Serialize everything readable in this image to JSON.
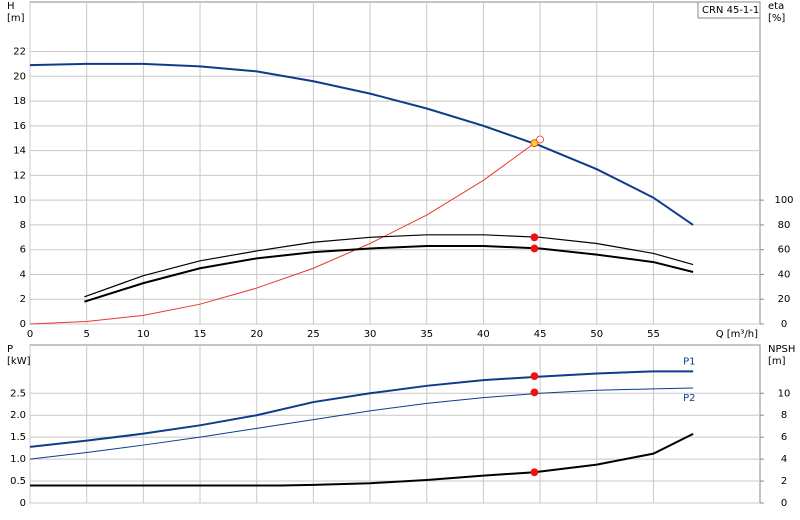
{
  "chart_data": [
    {
      "type": "line",
      "title": "CRN 45-1-1",
      "ylabel": [
        "H",
        "[m]"
      ],
      "y2label": [
        "eta",
        "[%]"
      ],
      "xlabel": "Q [m³/h]",
      "xlim": [
        0,
        64.4
      ],
      "xticks": [
        0,
        5,
        10,
        15,
        20,
        25,
        30,
        35,
        40,
        45,
        50,
        55
      ],
      "xtick_labels": true,
      "ylim": [
        0,
        26
      ],
      "yticks": [
        0,
        2,
        4,
        6,
        8,
        10,
        12,
        14,
        16,
        18,
        20,
        22
      ],
      "y2lim": [
        0,
        260
      ],
      "y2ticks": [
        0,
        20,
        40,
        60,
        80,
        100
      ],
      "grid": true,
      "series": [
        {
          "color": "#0d3d8a",
          "width": 2,
          "x": [
            0,
            5,
            10,
            15,
            20,
            25,
            30,
            35,
            40,
            45,
            50,
            55,
            58.5
          ],
          "values": [
            20.9,
            21.0,
            21.0,
            20.8,
            20.4,
            19.6,
            18.6,
            17.4,
            16.0,
            14.4,
            12.5,
            10.2,
            8.0
          ]
        },
        {
          "color": "#e8392a",
          "width": 1,
          "x": [
            0,
            5,
            10,
            15,
            20,
            25,
            30,
            35,
            40,
            44.5,
            45
          ],
          "values": [
            0,
            0.2,
            0.7,
            1.6,
            2.9,
            4.5,
            6.5,
            8.8,
            11.6,
            14.6,
            14.9
          ]
        },
        {
          "color": "#000000",
          "width": 1.2,
          "axis": "y2",
          "x": [
            4.8,
            10,
            15,
            20,
            25,
            30,
            35,
            40,
            45,
            50,
            55,
            58.5
          ],
          "values": [
            22,
            39,
            51,
            59,
            66,
            70,
            72,
            72,
            70,
            65,
            57,
            48
          ]
        },
        {
          "color": "#000000",
          "width": 2,
          "axis": "y2",
          "x": [
            4.8,
            10,
            15,
            20,
            25,
            30,
            35,
            40,
            45,
            50,
            55,
            58.5
          ],
          "values": [
            18,
            33,
            45,
            53,
            58,
            61,
            63,
            63,
            61,
            56,
            50,
            42
          ]
        }
      ],
      "markers": [
        {
          "x": 44.5,
          "y": 14.6,
          "color": "#ffd21f"
        },
        {
          "x": 45,
          "y": 14.9,
          "color": "#ffffff"
        },
        {
          "x": 44.5,
          "y": 70,
          "color": "#ee1111",
          "axis": "y2"
        },
        {
          "x": 44.5,
          "y": 61,
          "color": "#ee1111",
          "axis": "y2"
        }
      ]
    },
    {
      "type": "line",
      "ylabel": [
        "P",
        "[kW]"
      ],
      "y2label": [
        "NPSH",
        "[m]"
      ],
      "xlim": [
        0,
        64.4
      ],
      "xticks": [
        0,
        5,
        10,
        15,
        20,
        25,
        30,
        35,
        40,
        45,
        50,
        55
      ],
      "xtick_labels": false,
      "ylim": [
        0,
        3.6
      ],
      "yticks": [
        0,
        0.5,
        {
          "value": 1,
          "label": "1.0"
        },
        1.5,
        {
          "value": 2,
          "label": "2.0"
        },
        2.5
      ],
      "y2lim": [
        0,
        14.4
      ],
      "y2ticks": [
        0,
        2,
        4,
        6,
        8,
        10
      ],
      "grid": true,
      "series": [
        {
          "name": "P1",
          "color": "#0d3d8a",
          "width": 2,
          "x": [
            0,
            5,
            10,
            15,
            20,
            25,
            30,
            35,
            40,
            45,
            50,
            55,
            58.5
          ],
          "values": [
            1.28,
            1.42,
            1.58,
            1.77,
            2.0,
            2.3,
            2.5,
            2.67,
            2.8,
            2.88,
            2.95,
            3.0,
            3.0
          ]
        },
        {
          "name": "P2",
          "color": "#0d3d8a",
          "width": 1,
          "x": [
            0,
            5,
            10,
            15,
            20,
            25,
            30,
            35,
            40,
            45,
            50,
            55,
            58.5
          ],
          "values": [
            1.0,
            1.15,
            1.32,
            1.5,
            1.7,
            1.9,
            2.1,
            2.27,
            2.4,
            2.5,
            2.57,
            2.6,
            2.62
          ]
        },
        {
          "color": "#000000",
          "width": 2,
          "axis": "y2",
          "x": [
            0,
            22.2,
            25,
            30,
            35,
            40,
            44.5,
            50,
            55,
            58.5
          ],
          "values": [
            1.6,
            1.6,
            1.65,
            1.8,
            2.1,
            2.5,
            2.8,
            3.5,
            4.5,
            6.3
          ]
        }
      ],
      "markers": [
        {
          "x": 44.5,
          "y": 2.89,
          "color": "#ee1111"
        },
        {
          "x": 44.5,
          "y": 2.52,
          "color": "#ee1111"
        },
        {
          "x": 44.5,
          "y": 2.8,
          "color": "#ee1111",
          "axis": "y2"
        }
      ]
    }
  ]
}
